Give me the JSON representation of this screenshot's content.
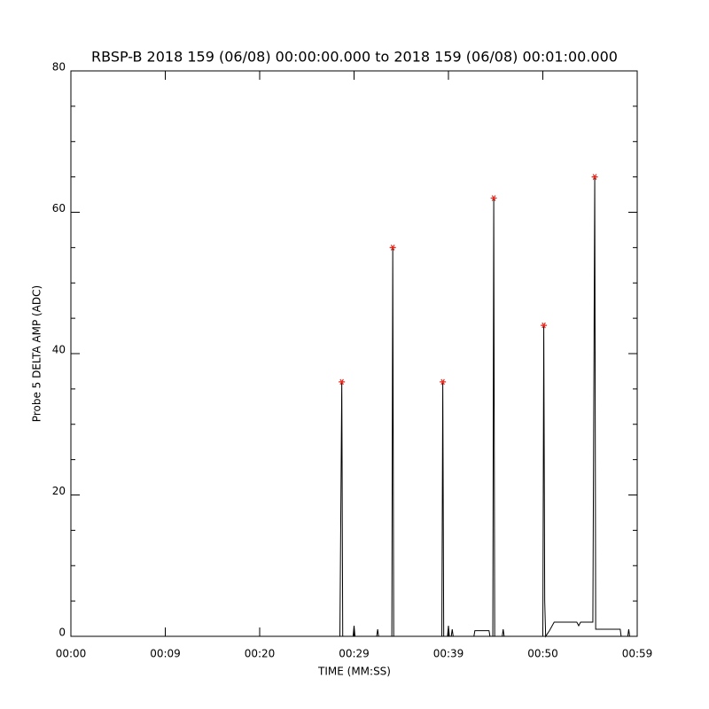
{
  "chart_data": {
    "type": "line",
    "title": "RBSP-B 2018 159 (06/08) 00:00:00.000 to 2018 159 (06/08) 00:01:00.000",
    "xlabel": "TIME (MM:SS)",
    "ylabel": "Probe 5 DELTA AMP (ADC)",
    "xlim": [
      0,
      60
    ],
    "ylim": [
      0,
      80
    ],
    "xticks": [
      {
        "value": 0,
        "label": "00:00"
      },
      {
        "value": 10,
        "label": "00:09"
      },
      {
        "value": 20,
        "label": "00:20"
      },
      {
        "value": 30,
        "label": "00:29"
      },
      {
        "value": 40,
        "label": "00:39"
      },
      {
        "value": 50,
        "label": "00:50"
      },
      {
        "value": 60,
        "label": "00:59"
      }
    ],
    "yticks": [
      0,
      20,
      40,
      60,
      80
    ],
    "yminorticks": [
      5,
      10,
      15,
      25,
      30,
      35,
      45,
      50,
      55,
      65,
      70,
      75
    ],
    "series": [
      {
        "color": "#000000",
        "x": [
          0,
          28.5,
          28.7,
          28.8,
          29.9,
          30.0,
          30.1,
          32.4,
          32.5,
          32.6,
          34.0,
          34.1,
          34.2,
          39.3,
          39.4,
          39.5,
          39.9,
          40.0,
          40.1,
          40.3,
          40.4,
          40.5,
          42.7,
          42.8,
          44.3,
          44.4,
          44.7,
          44.8,
          44.9,
          45.7,
          45.8,
          45.9,
          50.0,
          50.1,
          50.2,
          50.3,
          50.7,
          51.2,
          53.6,
          53.8,
          54.0,
          55.3,
          55.5,
          55.6,
          58.2,
          58.3,
          59.0,
          59.1,
          59.2,
          60
        ],
        "values": [
          0,
          0,
          36,
          0,
          0,
          1.5,
          0,
          0,
          1,
          0,
          0,
          55,
          0,
          0,
          36,
          0,
          0,
          1.5,
          0,
          0,
          1,
          0,
          0,
          0.8,
          0.8,
          0,
          0,
          62,
          0,
          0,
          1,
          0,
          0,
          44,
          5,
          0,
          0.8,
          2,
          2,
          1.5,
          2,
          2,
          65,
          1,
          1,
          0,
          0,
          1,
          0,
          0
        ]
      },
      {
        "color": "#e8261c",
        "marker": "asterisk",
        "x": [
          28.7,
          34.1,
          39.4,
          44.8,
          50.1,
          55.5
        ],
        "values": [
          36,
          55,
          36,
          62,
          44,
          65
        ]
      }
    ]
  }
}
